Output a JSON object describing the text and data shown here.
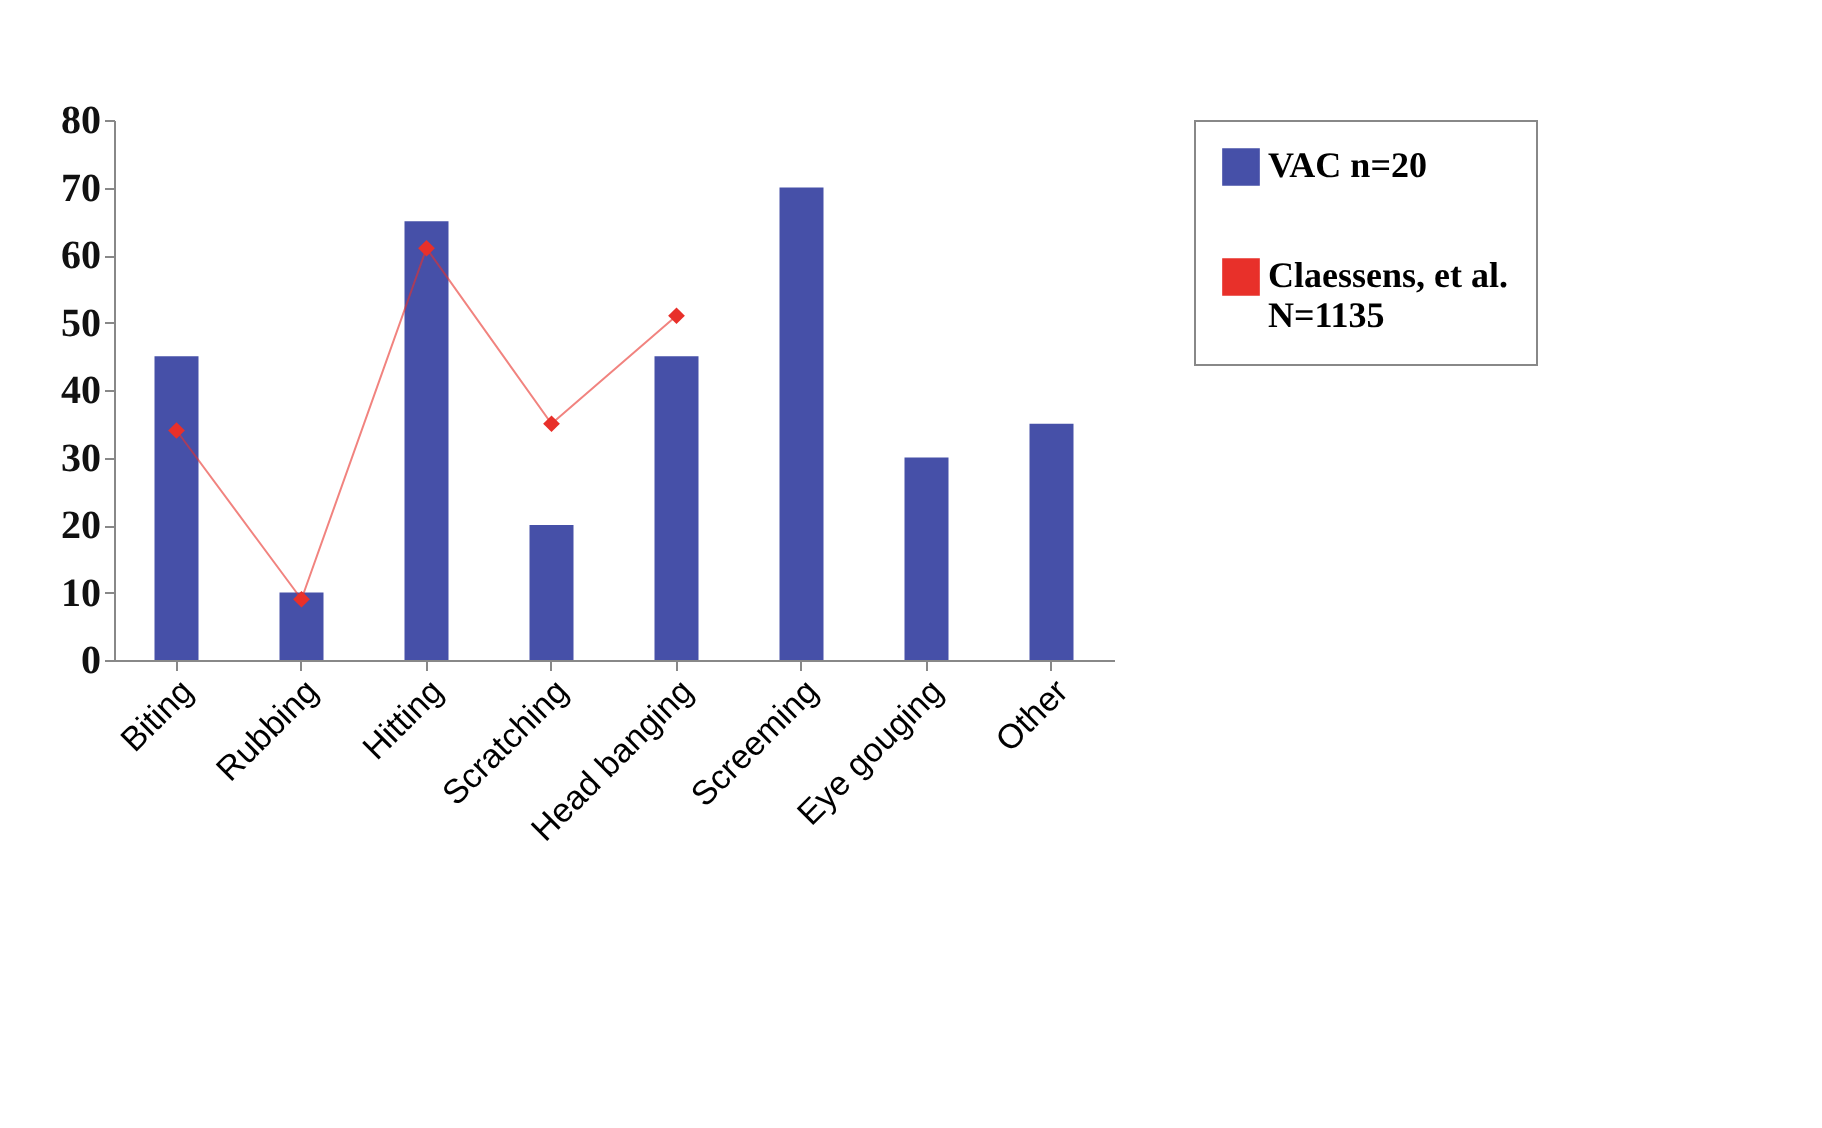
{
  "chart_data": {
    "type": "bar",
    "categories": [
      "Biting",
      "Rubbing",
      "Hitting",
      "Scratching",
      "Head banging",
      "Screeming",
      "Eye gouging",
      "Other"
    ],
    "series": [
      {
        "name": "VAC n=20",
        "color": "#4650a8",
        "values": [
          45,
          10,
          65,
          20,
          45,
          70,
          30,
          35
        ]
      },
      {
        "name": "Claessens, et al. N=1135",
        "type": "line",
        "color": "#e8302a",
        "marker": "diamond",
        "values": [
          34,
          9,
          61,
          35,
          51,
          null,
          null,
          null
        ]
      }
    ],
    "ylim": [
      0,
      80
    ],
    "yticks": [
      0,
      10,
      20,
      30,
      40,
      50,
      60,
      70,
      80
    ],
    "grid": false,
    "legend": "right"
  }
}
